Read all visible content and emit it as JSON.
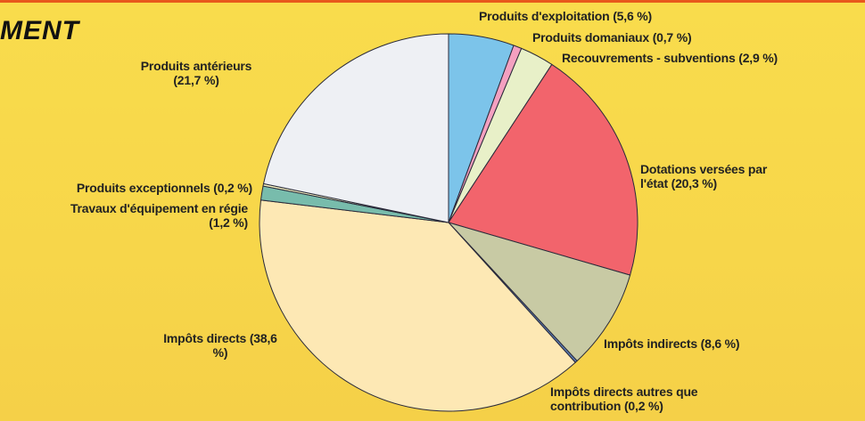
{
  "chart_data": {
    "type": "pie",
    "title": "MENT",
    "categories": [
      "Produits d'exploitation",
      "Produits domaniaux",
      "Recouvrements - subventions",
      "Dotations versées par l'état",
      "Impôts indirects",
      "Impôts directs autres que contribution",
      "Impôts directs",
      "Travaux d'équipement en régie",
      "Produits exceptionnels",
      "Produits antérieurs"
    ],
    "values": [
      5.6,
      0.7,
      2.9,
      20.3,
      8.6,
      0.2,
      38.6,
      1.2,
      0.2,
      21.7
    ],
    "value_labels": [
      "(5,6 %)",
      "(0,7 %)",
      "(2,9 %)",
      "(20,3 %)",
      "(8,6 %)",
      "(0,2 %)",
      "(38,6 %)",
      "(1,2 %)",
      "(0,2 %)",
      "(21,7 %)"
    ],
    "colors": [
      "#7cc4ea",
      "#f4a0c0",
      "#e8f0c8",
      "#f2646c",
      "#c8caa4",
      "#5a7cb4",
      "#fde8b4",
      "#78bcac",
      "#f6f2c0",
      "#eef0f4"
    ]
  }
}
